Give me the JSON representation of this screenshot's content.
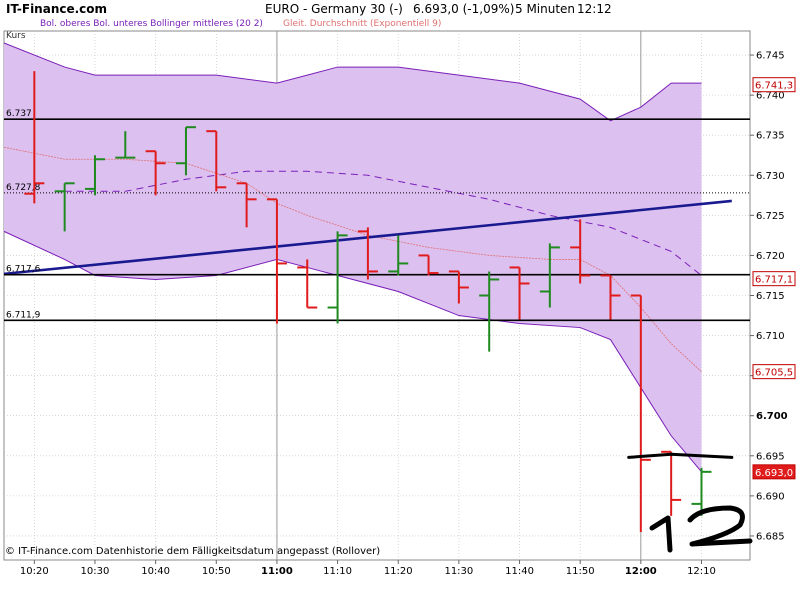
{
  "header": {
    "site": "IT-Finance.com",
    "legend_items": [
      "Bol. oberes Bol. unteres Bollinger mittleres (20 2)",
      "Gleit. Durchschnitt (Exponentiell 9)"
    ],
    "title": "EURO - Germany 30 (-)",
    "quote": "6.693,0 (-1,09%)",
    "interval": "5 Minuten",
    "time": "12:12"
  },
  "kurs_label": "Kurs",
  "copyright": "© IT-Finance.com  Datenhistorie dem Fälligkeitsdatum angepasst (Rollover)",
  "handwritten_annotation": "12",
  "colors": {
    "up": "#1f8a1f",
    "down": "#e01b1b",
    "band_fill": "#dcc0f0",
    "band_line": "#7a1fb8",
    "mid_line": "#7a1fb8",
    "ema": "#e07070",
    "trend": "#1a1a90",
    "level": "#000000",
    "grid": "#c0c0c0",
    "badge_text": "#c00000",
    "badge_border": "#c00000"
  },
  "chart_data": {
    "type": "ohlc",
    "ylim": [
      6.682,
      6.748
    ],
    "y_ticks": [
      6.685,
      6.69,
      6.695,
      6.7,
      6.705,
      6.71,
      6.715,
      6.72,
      6.725,
      6.73,
      6.735,
      6.74,
      6.745
    ],
    "y_tick_labels": [
      "6.685",
      "6.690",
      "6.695",
      "6.700",
      "6.705",
      "6.710",
      "6.715",
      "6.720",
      "6.725",
      "6.730",
      "6.735",
      "6.740",
      "6.745"
    ],
    "bold_y_ticks": [
      "6.700"
    ],
    "x_ticks": [
      "10:20",
      "10:30",
      "10:40",
      "10:50",
      "11:00",
      "11:10",
      "11:20",
      "11:30",
      "11:40",
      "11:50",
      "12:00",
      "12:10"
    ],
    "bold_x_ticks": [
      "11:00",
      "12:00"
    ],
    "bars": [
      {
        "t": "10:20",
        "o": 6.7277,
        "h": 6.743,
        "l": 6.7265,
        "c": 6.729,
        "dir": "down"
      },
      {
        "t": "10:25",
        "o": 6.728,
        "h": 6.729,
        "l": 6.723,
        "c": 6.729,
        "dir": "up"
      },
      {
        "t": "10:30",
        "o": 6.7283,
        "h": 6.7325,
        "l": 6.7275,
        "c": 6.732,
        "dir": "up"
      },
      {
        "t": "10:35",
        "o": 6.7322,
        "h": 6.7355,
        "l": 6.7322,
        "c": 6.7322,
        "dir": "up"
      },
      {
        "t": "10:40",
        "o": 6.733,
        "h": 6.733,
        "l": 6.7275,
        "c": 6.7315,
        "dir": "down"
      },
      {
        "t": "10:45",
        "o": 6.7315,
        "h": 6.736,
        "l": 6.73,
        "c": 6.736,
        "dir": "up"
      },
      {
        "t": "10:50",
        "o": 6.7355,
        "h": 6.7355,
        "l": 6.728,
        "c": 6.7285,
        "dir": "down"
      },
      {
        "t": "10:55",
        "o": 6.729,
        "h": 6.729,
        "l": 6.7235,
        "c": 6.727,
        "dir": "down"
      },
      {
        "t": "11:00",
        "o": 6.727,
        "h": 6.727,
        "l": 6.7115,
        "c": 6.719,
        "dir": "down"
      },
      {
        "t": "11:05",
        "o": 6.7185,
        "h": 6.7195,
        "l": 6.7135,
        "c": 6.7135,
        "dir": "down"
      },
      {
        "t": "11:10",
        "o": 6.7135,
        "h": 6.723,
        "l": 6.7115,
        "c": 6.7225,
        "dir": "up"
      },
      {
        "t": "11:15",
        "o": 6.723,
        "h": 6.7235,
        "l": 6.717,
        "c": 6.718,
        "dir": "down"
      },
      {
        "t": "11:20",
        "o": 6.718,
        "h": 6.7225,
        "l": 6.7175,
        "c": 6.719,
        "dir": "up"
      },
      {
        "t": "11:25",
        "o": 6.72,
        "h": 6.72,
        "l": 6.7175,
        "c": 6.7178,
        "dir": "down"
      },
      {
        "t": "11:30",
        "o": 6.718,
        "h": 6.718,
        "l": 6.714,
        "c": 6.716,
        "dir": "down"
      },
      {
        "t": "11:35",
        "o": 6.715,
        "h": 6.718,
        "l": 6.708,
        "c": 6.717,
        "dir": "up"
      },
      {
        "t": "11:40",
        "o": 6.7185,
        "h": 6.7185,
        "l": 6.712,
        "c": 6.7165,
        "dir": "down"
      },
      {
        "t": "11:45",
        "o": 6.7155,
        "h": 6.7215,
        "l": 6.7135,
        "c": 6.721,
        "dir": "up"
      },
      {
        "t": "11:50",
        "o": 6.721,
        "h": 6.7245,
        "l": 6.7165,
        "c": 6.7175,
        "dir": "down"
      },
      {
        "t": "11:55",
        "o": 6.7175,
        "h": 6.7175,
        "l": 6.712,
        "c": 6.715,
        "dir": "down"
      },
      {
        "t": "12:00",
        "o": 6.715,
        "h": 6.715,
        "l": 6.6855,
        "c": 6.6945,
        "dir": "down"
      },
      {
        "t": "12:05",
        "o": 6.6955,
        "h": 6.6955,
        "l": 6.6875,
        "c": 6.6895,
        "dir": "down"
      },
      {
        "t": "12:10",
        "o": 6.689,
        "h": 6.6935,
        "l": 6.6875,
        "c": 6.693,
        "dir": "up"
      }
    ],
    "bollinger_upper": [
      {
        "t": "10:15",
        "v": 6.7465
      },
      {
        "t": "10:25",
        "v": 6.7435
      },
      {
        "t": "10:30",
        "v": 6.7425
      },
      {
        "t": "10:40",
        "v": 6.7425
      },
      {
        "t": "10:50",
        "v": 6.7425
      },
      {
        "t": "11:00",
        "v": 6.7415
      },
      {
        "t": "11:05",
        "v": 6.7425
      },
      {
        "t": "11:10",
        "v": 6.7435
      },
      {
        "t": "11:20",
        "v": 6.7435
      },
      {
        "t": "11:30",
        "v": 6.7425
      },
      {
        "t": "11:40",
        "v": 6.7415
      },
      {
        "t": "11:50",
        "v": 6.7395
      },
      {
        "t": "11:55",
        "v": 6.7368
      },
      {
        "t": "12:00",
        "v": 6.7385
      },
      {
        "t": "12:05",
        "v": 6.7415
      },
      {
        "t": "12:10",
        "v": 6.7415
      }
    ],
    "bollinger_lower": [
      {
        "t": "10:15",
        "v": 6.723
      },
      {
        "t": "10:25",
        "v": 6.7195
      },
      {
        "t": "10:30",
        "v": 6.7175
      },
      {
        "t": "10:40",
        "v": 6.717
      },
      {
        "t": "10:50",
        "v": 6.7175
      },
      {
        "t": "11:00",
        "v": 6.7195
      },
      {
        "t": "11:05",
        "v": 6.7185
      },
      {
        "t": "11:10",
        "v": 6.7175
      },
      {
        "t": "11:20",
        "v": 6.7155
      },
      {
        "t": "11:30",
        "v": 6.7125
      },
      {
        "t": "11:40",
        "v": 6.7115
      },
      {
        "t": "11:50",
        "v": 6.711
      },
      {
        "t": "11:55",
        "v": 6.7095
      },
      {
        "t": "12:00",
        "v": 6.7035
      },
      {
        "t": "12:05",
        "v": 6.6975
      },
      {
        "t": "12:10",
        "v": 6.693
      }
    ],
    "bollinger_middle": [
      {
        "t": "10:25",
        "v": 6.728
      },
      {
        "t": "10:35",
        "v": 6.728
      },
      {
        "t": "10:45",
        "v": 6.7295
      },
      {
        "t": "10:55",
        "v": 6.7305
      },
      {
        "t": "11:05",
        "v": 6.7305
      },
      {
        "t": "11:15",
        "v": 6.73
      },
      {
        "t": "11:25",
        "v": 6.7285
      },
      {
        "t": "11:35",
        "v": 6.727
      },
      {
        "t": "11:45",
        "v": 6.725
      },
      {
        "t": "11:55",
        "v": 6.7235
      },
      {
        "t": "12:05",
        "v": 6.7205
      },
      {
        "t": "12:10",
        "v": 6.7175
      }
    ],
    "ema": [
      {
        "t": "10:15",
        "v": 6.7335
      },
      {
        "t": "10:25",
        "v": 6.732
      },
      {
        "t": "10:35",
        "v": 6.732
      },
      {
        "t": "10:45",
        "v": 6.7315
      },
      {
        "t": "10:55",
        "v": 6.729
      },
      {
        "t": "11:00",
        "v": 6.7265
      },
      {
        "t": "11:05",
        "v": 6.725
      },
      {
        "t": "11:15",
        "v": 6.7225
      },
      {
        "t": "11:25",
        "v": 6.721
      },
      {
        "t": "11:35",
        "v": 6.72
      },
      {
        "t": "11:45",
        "v": 6.7195
      },
      {
        "t": "11:50",
        "v": 6.7195
      },
      {
        "t": "11:55",
        "v": 6.7175
      },
      {
        "t": "12:00",
        "v": 6.7135
      },
      {
        "t": "12:05",
        "v": 6.709
      },
      {
        "t": "12:10",
        "v": 6.7055
      }
    ],
    "trendline": [
      {
        "t": "10:15",
        "v": 6.7177
      },
      {
        "t": "12:15",
        "v": 6.7268
      }
    ],
    "horizontal_levels": [
      {
        "value": 6.737,
        "label": "6.737"
      },
      {
        "value": 6.7278,
        "label": "6.727,8",
        "style": "dotted"
      },
      {
        "value": 6.7176,
        "label": "6.717,6"
      },
      {
        "value": 6.7119,
        "label": "6.711,9"
      }
    ],
    "handdrawn_line": [
      {
        "t": "11:58",
        "v": 6.6948
      },
      {
        "t": "12:05",
        "v": 6.6952
      },
      {
        "t": "12:15",
        "v": 6.6948
      }
    ],
    "right_badges": [
      {
        "value": 6.7413,
        "label": "6.741,3",
        "style": "outline"
      },
      {
        "value": 6.7171,
        "label": "6.717,1",
        "style": "outline"
      },
      {
        "value": 6.7055,
        "label": "6.705,5",
        "style": "outline"
      },
      {
        "value": 6.693,
        "label": "6.693,0",
        "style": "filled"
      }
    ]
  }
}
